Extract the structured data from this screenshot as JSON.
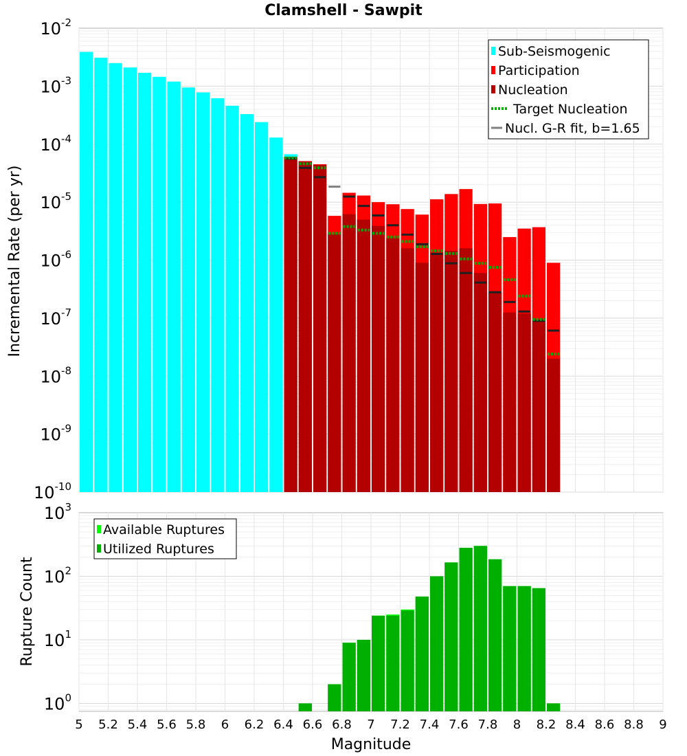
{
  "chart_data": [
    {
      "type": "bar",
      "title": "Clamshell - Sawpit",
      "ylabel": "Incremental Rate (per yr)",
      "yscale": "log",
      "ylim": [
        1e-10,
        0.01
      ],
      "xlim": [
        5,
        9
      ],
      "y_ticks": [
        {
          "base": "10",
          "exp": "-2"
        },
        {
          "base": "10",
          "exp": "-3"
        },
        {
          "base": "10",
          "exp": "-4"
        },
        {
          "base": "10",
          "exp": "-5"
        },
        {
          "base": "10",
          "exp": "-6"
        },
        {
          "base": "10",
          "exp": "-7"
        },
        {
          "base": "10",
          "exp": "-8"
        },
        {
          "base": "10",
          "exp": "-9"
        },
        {
          "base": "10",
          "exp": "-10"
        }
      ],
      "legend_position": "top-right",
      "series": [
        {
          "name": "Sub-Seismogenic",
          "color": "#00ffff",
          "type": "bar",
          "x": [
            5.05,
            5.15,
            5.25,
            5.35,
            5.45,
            5.55,
            5.65,
            5.75,
            5.85,
            5.95,
            6.05,
            6.15,
            6.25,
            6.35,
            6.45
          ],
          "values": [
            0.0039,
            0.0031,
            0.0025,
            0.0021,
            0.0017,
            0.00145,
            0.0012,
            0.00095,
            0.00078,
            0.00062,
            0.00046,
            0.00033,
            0.00024,
            0.00013,
            6.7e-05
          ]
        },
        {
          "name": "Participation",
          "color": "#ff0000",
          "type": "bar",
          "x": [
            6.55,
            6.65,
            6.75,
            6.85,
            6.95,
            7.05,
            7.15,
            7.25,
            7.35,
            7.45,
            7.55,
            7.65,
            7.75,
            7.85,
            7.95,
            8.05,
            8.15,
            8.25
          ],
          "values": [
            5.1e-05,
            4.5e-05,
            5.8e-06,
            1.45e-05,
            1.3e-05,
            1e-05,
            9.2e-06,
            7.6e-06,
            6.1e-06,
            1.12e-05,
            1.38e-05,
            1.68e-05,
            9.3e-06,
            9.5e-06,
            2.5e-06,
            3.5e-06,
            3.7e-06,
            9e-07
          ]
        },
        {
          "name": "Nucleation",
          "color": "#b30000",
          "type": "bar",
          "x": [
            6.45,
            6.55,
            6.65,
            6.75,
            6.85,
            6.95,
            7.05,
            7.15,
            7.25,
            7.35,
            7.45,
            7.55,
            7.65,
            7.75,
            7.85,
            7.95,
            8.05,
            8.15,
            8.25
          ],
          "values": [
            6e-05,
            5e-05,
            4.4e-05,
            2.8e-06,
            6.2e-06,
            5e-06,
            3.9e-06,
            2.4e-06,
            1.6e-06,
            9e-07,
            1.35e-06,
            1.45e-06,
            1.6e-06,
            6e-07,
            2.8e-07,
            1.25e-07,
            1.2e-07,
            9e-08,
            2e-08
          ]
        },
        {
          "name": "Target Nucleation",
          "color": "#00b000",
          "type": "dash",
          "x": [
            6.45,
            6.55,
            6.65,
            6.75,
            6.85,
            6.95,
            7.05,
            7.15,
            7.25,
            7.35,
            7.45,
            7.55,
            7.65,
            7.75,
            7.85,
            7.95,
            8.05,
            8.15,
            8.25
          ],
          "values": [
            5.8e-05,
            4.6e-05,
            3.9e-05,
            2.9e-06,
            3.8e-06,
            3.3e-06,
            2.9e-06,
            2.5e-06,
            2.1e-06,
            1.7e-06,
            1.45e-06,
            1.3e-06,
            1.05e-06,
            8.8e-07,
            7.5e-07,
            4.6e-07,
            2.4e-07,
            9.5e-08,
            2.4e-08
          ]
        },
        {
          "name": "Nucl. G-R fit, b=1.65",
          "color": "#808080",
          "type": "segment",
          "x": [
            6.45,
            6.55,
            6.65,
            6.75,
            6.85,
            6.95,
            7.05,
            7.15,
            7.25,
            7.35,
            7.45,
            7.55,
            7.65,
            7.75,
            7.85,
            7.95,
            8.05,
            8.15,
            8.25
          ],
          "values": [
            5.6e-05,
            3.9e-05,
            2.7e-05,
            1.85e-05,
            1.25e-05,
            8.6e-06,
            5.9e-06,
            4e-06,
            2.75e-06,
            1.88e-06,
            1.28e-06,
            8.8e-07,
            6e-07,
            4.1e-07,
            2.8e-07,
            1.9e-07,
            1.3e-07,
            9e-08,
            6.1e-08
          ]
        }
      ]
    },
    {
      "type": "bar",
      "ylabel": "Rupture Count",
      "xlabel": "Magnitude",
      "yscale": "log",
      "ylim": [
        0.75,
        1000
      ],
      "xlim": [
        5,
        9
      ],
      "y_ticks": [
        {
          "base": "10",
          "exp": "3"
        },
        {
          "base": "10",
          "exp": "2"
        },
        {
          "base": "10",
          "exp": "1"
        },
        {
          "base": "10",
          "exp": "0"
        }
      ],
      "x_ticks": [
        "5",
        "5.2",
        "5.4",
        "5.6",
        "5.8",
        "6",
        "6.2",
        "6.4",
        "6.6",
        "6.8",
        "7",
        "7.2",
        "7.4",
        "7.6",
        "7.8",
        "8",
        "8.2",
        "8.4",
        "8.6",
        "8.8",
        "9"
      ],
      "legend_position": "top-left",
      "series": [
        {
          "name": "Available Ruptures",
          "color": "#00ff00",
          "x": [
            6.55,
            6.75,
            6.85,
            6.95,
            7.05,
            7.15,
            7.25,
            7.35,
            7.45,
            7.55,
            7.65,
            7.75,
            7.85,
            7.95,
            8.05,
            8.15,
            8.25
          ],
          "values": [
            1,
            2,
            9,
            10,
            24,
            25,
            30,
            48,
            100,
            165,
            280,
            300,
            185,
            70,
            70,
            65,
            1
          ]
        },
        {
          "name": "Utilized Ruptures",
          "color": "#00b000",
          "x": [
            6.55,
            6.75,
            6.85,
            6.95,
            7.05,
            7.15,
            7.25,
            7.35,
            7.45,
            7.55,
            7.65,
            7.75,
            7.85,
            7.95,
            8.05,
            8.15,
            8.25
          ],
          "values": [
            1,
            2,
            9,
            10,
            24,
            24,
            29,
            48,
            100,
            165,
            280,
            300,
            185,
            70,
            70,
            65,
            1
          ]
        }
      ]
    }
  ]
}
